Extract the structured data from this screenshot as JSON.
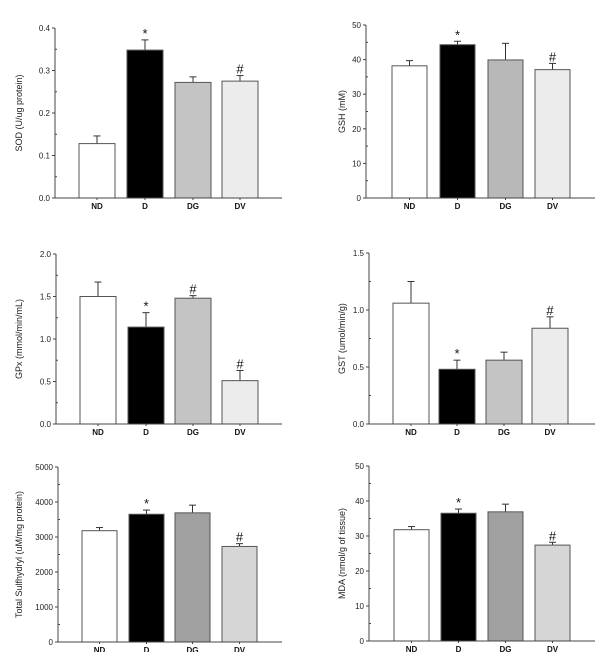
{
  "chart_data": [
    {
      "type": "bar",
      "ylabel": "SOD (U/ug protein)",
      "categories": [
        "ND",
        "D",
        "DG",
        "DV"
      ],
      "values": [
        0.128,
        0.348,
        0.272,
        0.275
      ],
      "errors": [
        0.018,
        0.024,
        0.013,
        0.013
      ],
      "annotations": [
        "",
        "*",
        "",
        "#"
      ],
      "colors": [
        "#ffffff",
        "#000000",
        "#c4c4c4",
        "#ececec"
      ],
      "ylim": [
        0,
        0.4
      ],
      "yticks": [
        0.0,
        0.1,
        0.2,
        0.3,
        0.4
      ],
      "ytick_labels": [
        "0.0",
        "0.1",
        "0.2",
        "0.3",
        "0.4"
      ]
    },
    {
      "type": "bar",
      "ylabel": "GSH (mM)",
      "categories": [
        "ND",
        "D",
        "DG",
        "DV"
      ],
      "values": [
        38.2,
        44.3,
        39.9,
        37.1
      ],
      "errors": [
        1.5,
        1.0,
        4.8,
        1.8
      ],
      "annotations": [
        "",
        "*",
        "",
        "#"
      ],
      "colors": [
        "#ffffff",
        "#000000",
        "#b8b8b8",
        "#ececec"
      ],
      "ylim": [
        0,
        50
      ],
      "yticks": [
        0,
        10,
        20,
        30,
        40,
        50
      ],
      "ytick_labels": [
        "0",
        "10",
        "20",
        "30",
        "40",
        "50"
      ]
    },
    {
      "type": "bar",
      "ylabel": "GPx (mmol/min/mL)",
      "categories": [
        "ND",
        "D",
        "DG",
        "DV"
      ],
      "values": [
        1.5,
        1.14,
        1.48,
        0.51
      ],
      "errors": [
        0.17,
        0.17,
        0.03,
        0.12
      ],
      "annotations": [
        "",
        "*",
        "#",
        "#"
      ],
      "colors": [
        "#ffffff",
        "#000000",
        "#c4c4c4",
        "#ececec"
      ],
      "ylim": [
        0,
        2.0
      ],
      "yticks": [
        0.0,
        0.5,
        1.0,
        1.5,
        2.0
      ],
      "ytick_labels": [
        "0.0",
        "0.5",
        "1.0",
        "1.5",
        "2.0"
      ]
    },
    {
      "type": "bar",
      "ylabel": "GST (umol/min/g)",
      "categories": [
        "ND",
        "D",
        "DG",
        "DV"
      ],
      "values": [
        1.06,
        0.48,
        0.56,
        0.84
      ],
      "errors": [
        0.19,
        0.08,
        0.07,
        0.1
      ],
      "annotations": [
        "",
        "*",
        "",
        "#"
      ],
      "colors": [
        "#ffffff",
        "#000000",
        "#c4c4c4",
        "#ececec"
      ],
      "ylim": [
        0,
        1.5
      ],
      "yticks": [
        0.0,
        0.5,
        1.0,
        1.5
      ],
      "ytick_labels": [
        "0.0",
        "0.5",
        "1.0",
        "1.5"
      ]
    },
    {
      "type": "bar",
      "ylabel": "Total Sulfhydryl (uM/mg protein)",
      "categories": [
        "ND",
        "D",
        "DG",
        "DV"
      ],
      "values": [
        3180,
        3650,
        3690,
        2730
      ],
      "errors": [
        90,
        120,
        220,
        80
      ],
      "annotations": [
        "",
        "*",
        "",
        "#"
      ],
      "colors": [
        "#ffffff",
        "#000000",
        "#a0a0a0",
        "#d6d6d6"
      ],
      "ylim": [
        0,
        5000
      ],
      "yticks": [
        0,
        1000,
        2000,
        3000,
        4000,
        5000
      ],
      "ytick_labels": [
        "0",
        "1000",
        "2000",
        "3000",
        "4000",
        "5000"
      ]
    },
    {
      "type": "bar",
      "ylabel": "MDA (nmol/g of tissue)",
      "categories": [
        "ND",
        "D",
        "DG",
        "DV"
      ],
      "values": [
        31.8,
        36.5,
        36.9,
        27.4
      ],
      "errors": [
        0.9,
        1.2,
        2.2,
        0.8
      ],
      "annotations": [
        "",
        "*",
        "",
        "#"
      ],
      "colors": [
        "#ffffff",
        "#000000",
        "#a0a0a0",
        "#d6d6d6"
      ],
      "ylim": [
        0,
        50
      ],
      "yticks": [
        0,
        10,
        20,
        30,
        40,
        50
      ],
      "ytick_labels": [
        "0",
        "10",
        "20",
        "30",
        "40",
        "50"
      ]
    }
  ]
}
